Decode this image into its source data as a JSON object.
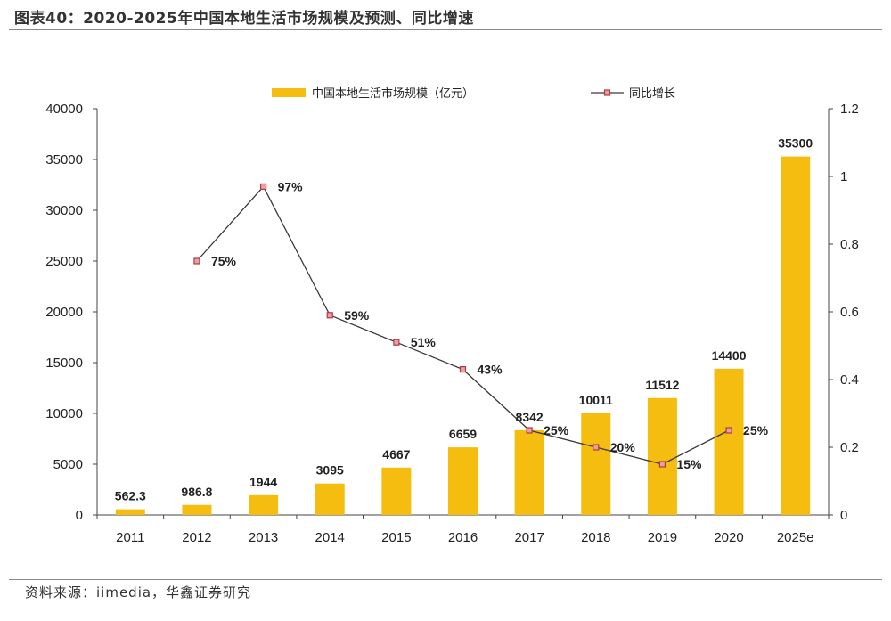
{
  "header": {
    "title": "图表40：2020-2025年中国本地生活市场规模及预测、同比增速"
  },
  "footer": {
    "source": "资料来源：iimedia，华鑫证券研究"
  },
  "colors": {
    "bar": "#F5BD0F",
    "line": "#3a3a3a",
    "marker_fill": "#E8A0A0",
    "marker_stroke": "#B03A48"
  },
  "chart_data": {
    "type": "bar",
    "categories": [
      "2011",
      "2012",
      "2013",
      "2014",
      "2015",
      "2016",
      "2017",
      "2018",
      "2019",
      "2020",
      "2025e"
    ],
    "series": [
      {
        "name": "中国本地生活市场规模（亿元）",
        "type": "bar",
        "axis": "left",
        "values": [
          562.3,
          986.8,
          1944,
          3095,
          4667,
          6659,
          8342,
          10011,
          11512,
          14400,
          35300
        ],
        "labels": [
          "562.3",
          "986.8",
          "1944",
          "3095",
          "4667",
          "6659",
          "8342",
          "10011",
          "11512",
          "14400",
          "35300"
        ]
      },
      {
        "name": "同比增长",
        "type": "line",
        "axis": "right",
        "values": [
          null,
          0.75,
          0.97,
          0.59,
          0.51,
          0.43,
          0.25,
          0.2,
          0.15,
          0.25,
          null
        ],
        "labels": [
          "",
          "75%",
          "97%",
          "59%",
          "51%",
          "43%",
          "25%",
          "20%",
          "15%",
          "25%",
          ""
        ]
      }
    ],
    "y_left": {
      "ylim": [
        0,
        40000
      ],
      "ticks": [
        "0",
        "5000",
        "10000",
        "15000",
        "20000",
        "25000",
        "30000",
        "35000",
        "40000"
      ]
    },
    "y_right": {
      "ylim": [
        0,
        1.2
      ],
      "ticks": [
        "0",
        "0.2",
        "0.4",
        "0.6",
        "0.8",
        "1",
        "1.2"
      ]
    },
    "grid": false,
    "legend_position": "top"
  }
}
